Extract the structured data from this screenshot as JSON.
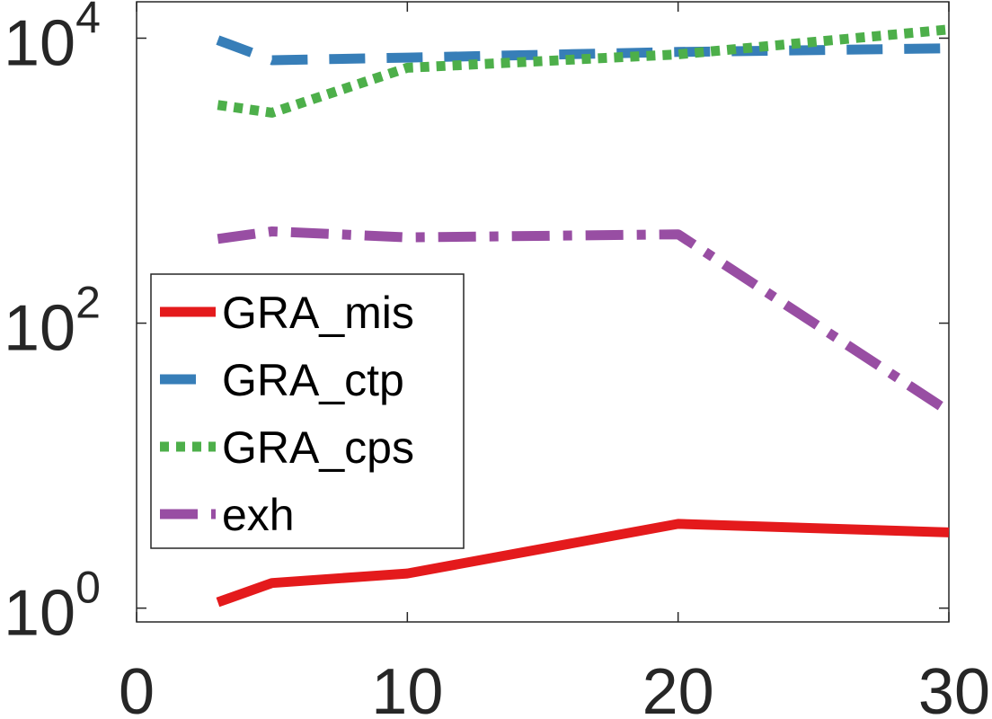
{
  "chart_data": {
    "type": "line",
    "title": "",
    "xlabel": "",
    "ylabel": "",
    "xscale": "linear",
    "yscale": "log",
    "xlim": [
      0,
      30
    ],
    "ylim": [
      0.8,
      18000
    ],
    "grid": false,
    "legend_position": "left",
    "x_ticks": [
      0,
      10,
      20,
      30
    ],
    "x_tick_labels": [
      "0",
      "10",
      "20",
      "30"
    ],
    "y_ticks": [
      1,
      100,
      10000
    ],
    "y_tick_labels": [
      {
        "base": "10",
        "exp": "0"
      },
      {
        "base": "10",
        "exp": "2"
      },
      {
        "base": "10",
        "exp": "4"
      }
    ],
    "x": [
      3,
      5,
      10,
      20,
      30
    ],
    "series": [
      {
        "name": "GRA_mis",
        "color": "#e41a1c",
        "dash": "solid",
        "values": [
          1.1,
          1.5,
          1.75,
          3.9,
          3.4
        ]
      },
      {
        "name": "GRA_ctp",
        "color": "#377eb8",
        "dash": "dashed",
        "values": [
          9700,
          7000,
          7300,
          8000,
          8500
        ]
      },
      {
        "name": "GRA_cps",
        "color": "#4daf4a",
        "dash": "dotted",
        "values": [
          3400,
          3000,
          6200,
          7700,
          11500
        ]
      },
      {
        "name": "exh",
        "color": "#984ea3",
        "dash": "dashdot",
        "values": [
          390,
          440,
          400,
          420,
          24
        ]
      }
    ]
  }
}
